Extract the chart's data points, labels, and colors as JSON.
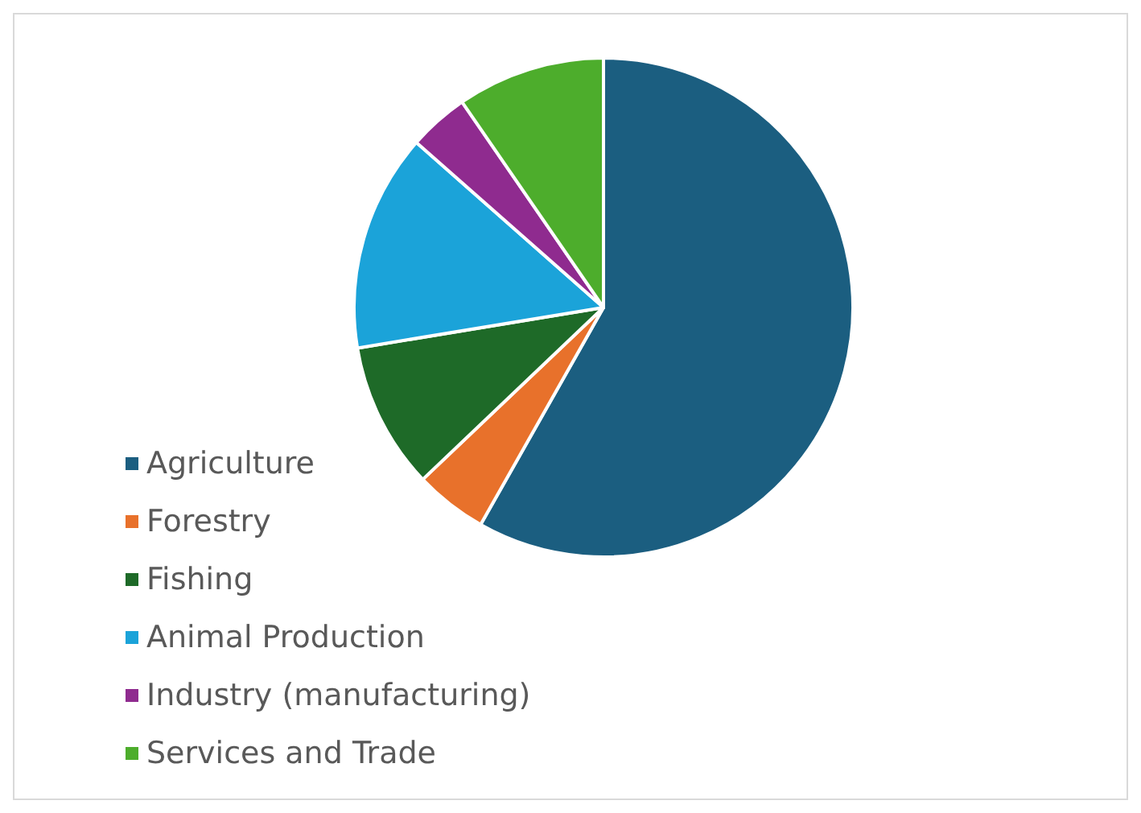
{
  "chart_data": {
    "type": "pie",
    "categories": [
      "Agriculture",
      "Forestry",
      "Fishing",
      "Animal Production",
      "Industry (manufacturing)",
      "Services and Trade"
    ],
    "values": [
      58.2,
      4.7,
      9.5,
      14.1,
      3.9,
      9.6
    ],
    "colors": [
      "#1b5e80",
      "#e8712b",
      "#1e6a28",
      "#1ba3d9",
      "#8f2b8f",
      "#4dad2c"
    ],
    "legend": "bottom left"
  }
}
